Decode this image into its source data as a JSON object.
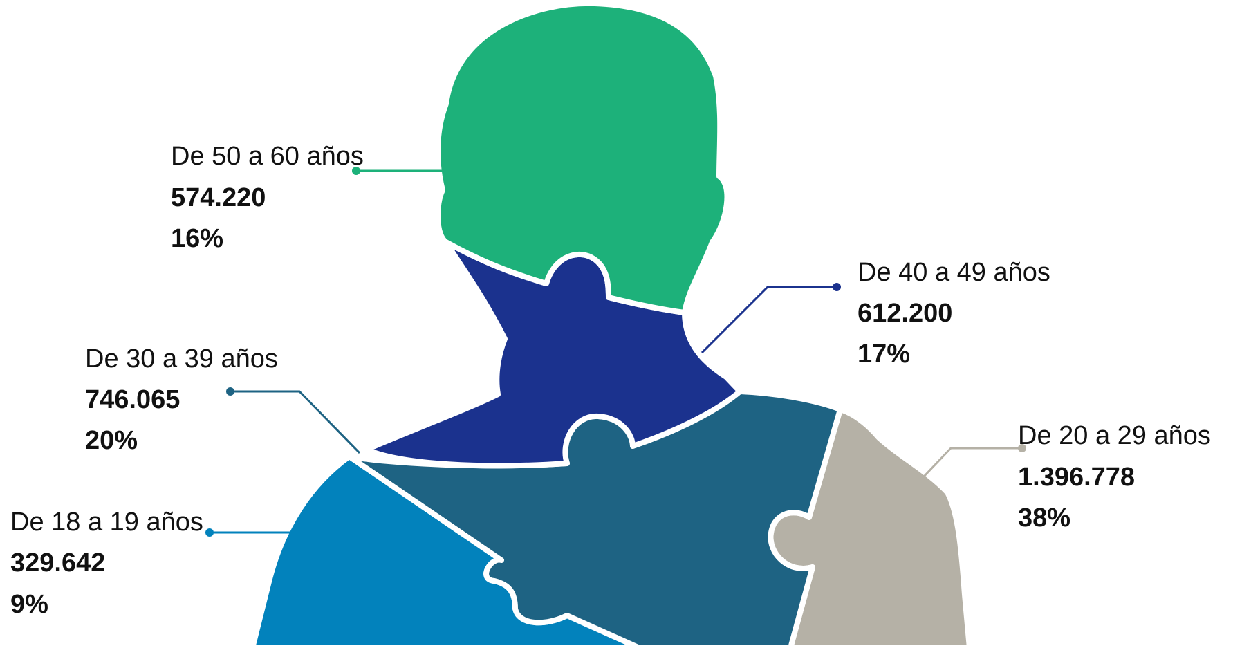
{
  "chart_data": {
    "type": "pie",
    "categories": [
      "De 18 a 19 años",
      "De 20 a 29 años",
      "De 30 a 39 años",
      "De 40 a 49 años",
      "De 50 a 60 años"
    ],
    "values": [
      329642,
      1396778,
      746065,
      612200,
      574220
    ],
    "value_labels": [
      "329.642",
      "1.396.778",
      "746.065",
      "612.200",
      "574.220"
    ],
    "percent_labels": [
      "9%",
      "38%",
      "20%",
      "17%",
      "16%"
    ]
  },
  "segments": {
    "s18": {
      "label": "De 18 a 19 años",
      "value": "329.642",
      "percent": "9%",
      "color": "#0282BC"
    },
    "s20": {
      "label": "De 20 a 29 años",
      "value": "1.396.778",
      "percent": "38%",
      "color": "#B5B1A6"
    },
    "s30": {
      "label": "De 30 a 39 años",
      "value": "746.065",
      "percent": "20%",
      "color": "#1E6383"
    },
    "s40": {
      "label": "De 40 a 49 años",
      "value": "612.200",
      "percent": "17%",
      "color": "#1B328E"
    },
    "s50": {
      "label": "De 50 a 60 años",
      "value": "574.220",
      "percent": "16%",
      "color": "#1DB17A"
    }
  }
}
